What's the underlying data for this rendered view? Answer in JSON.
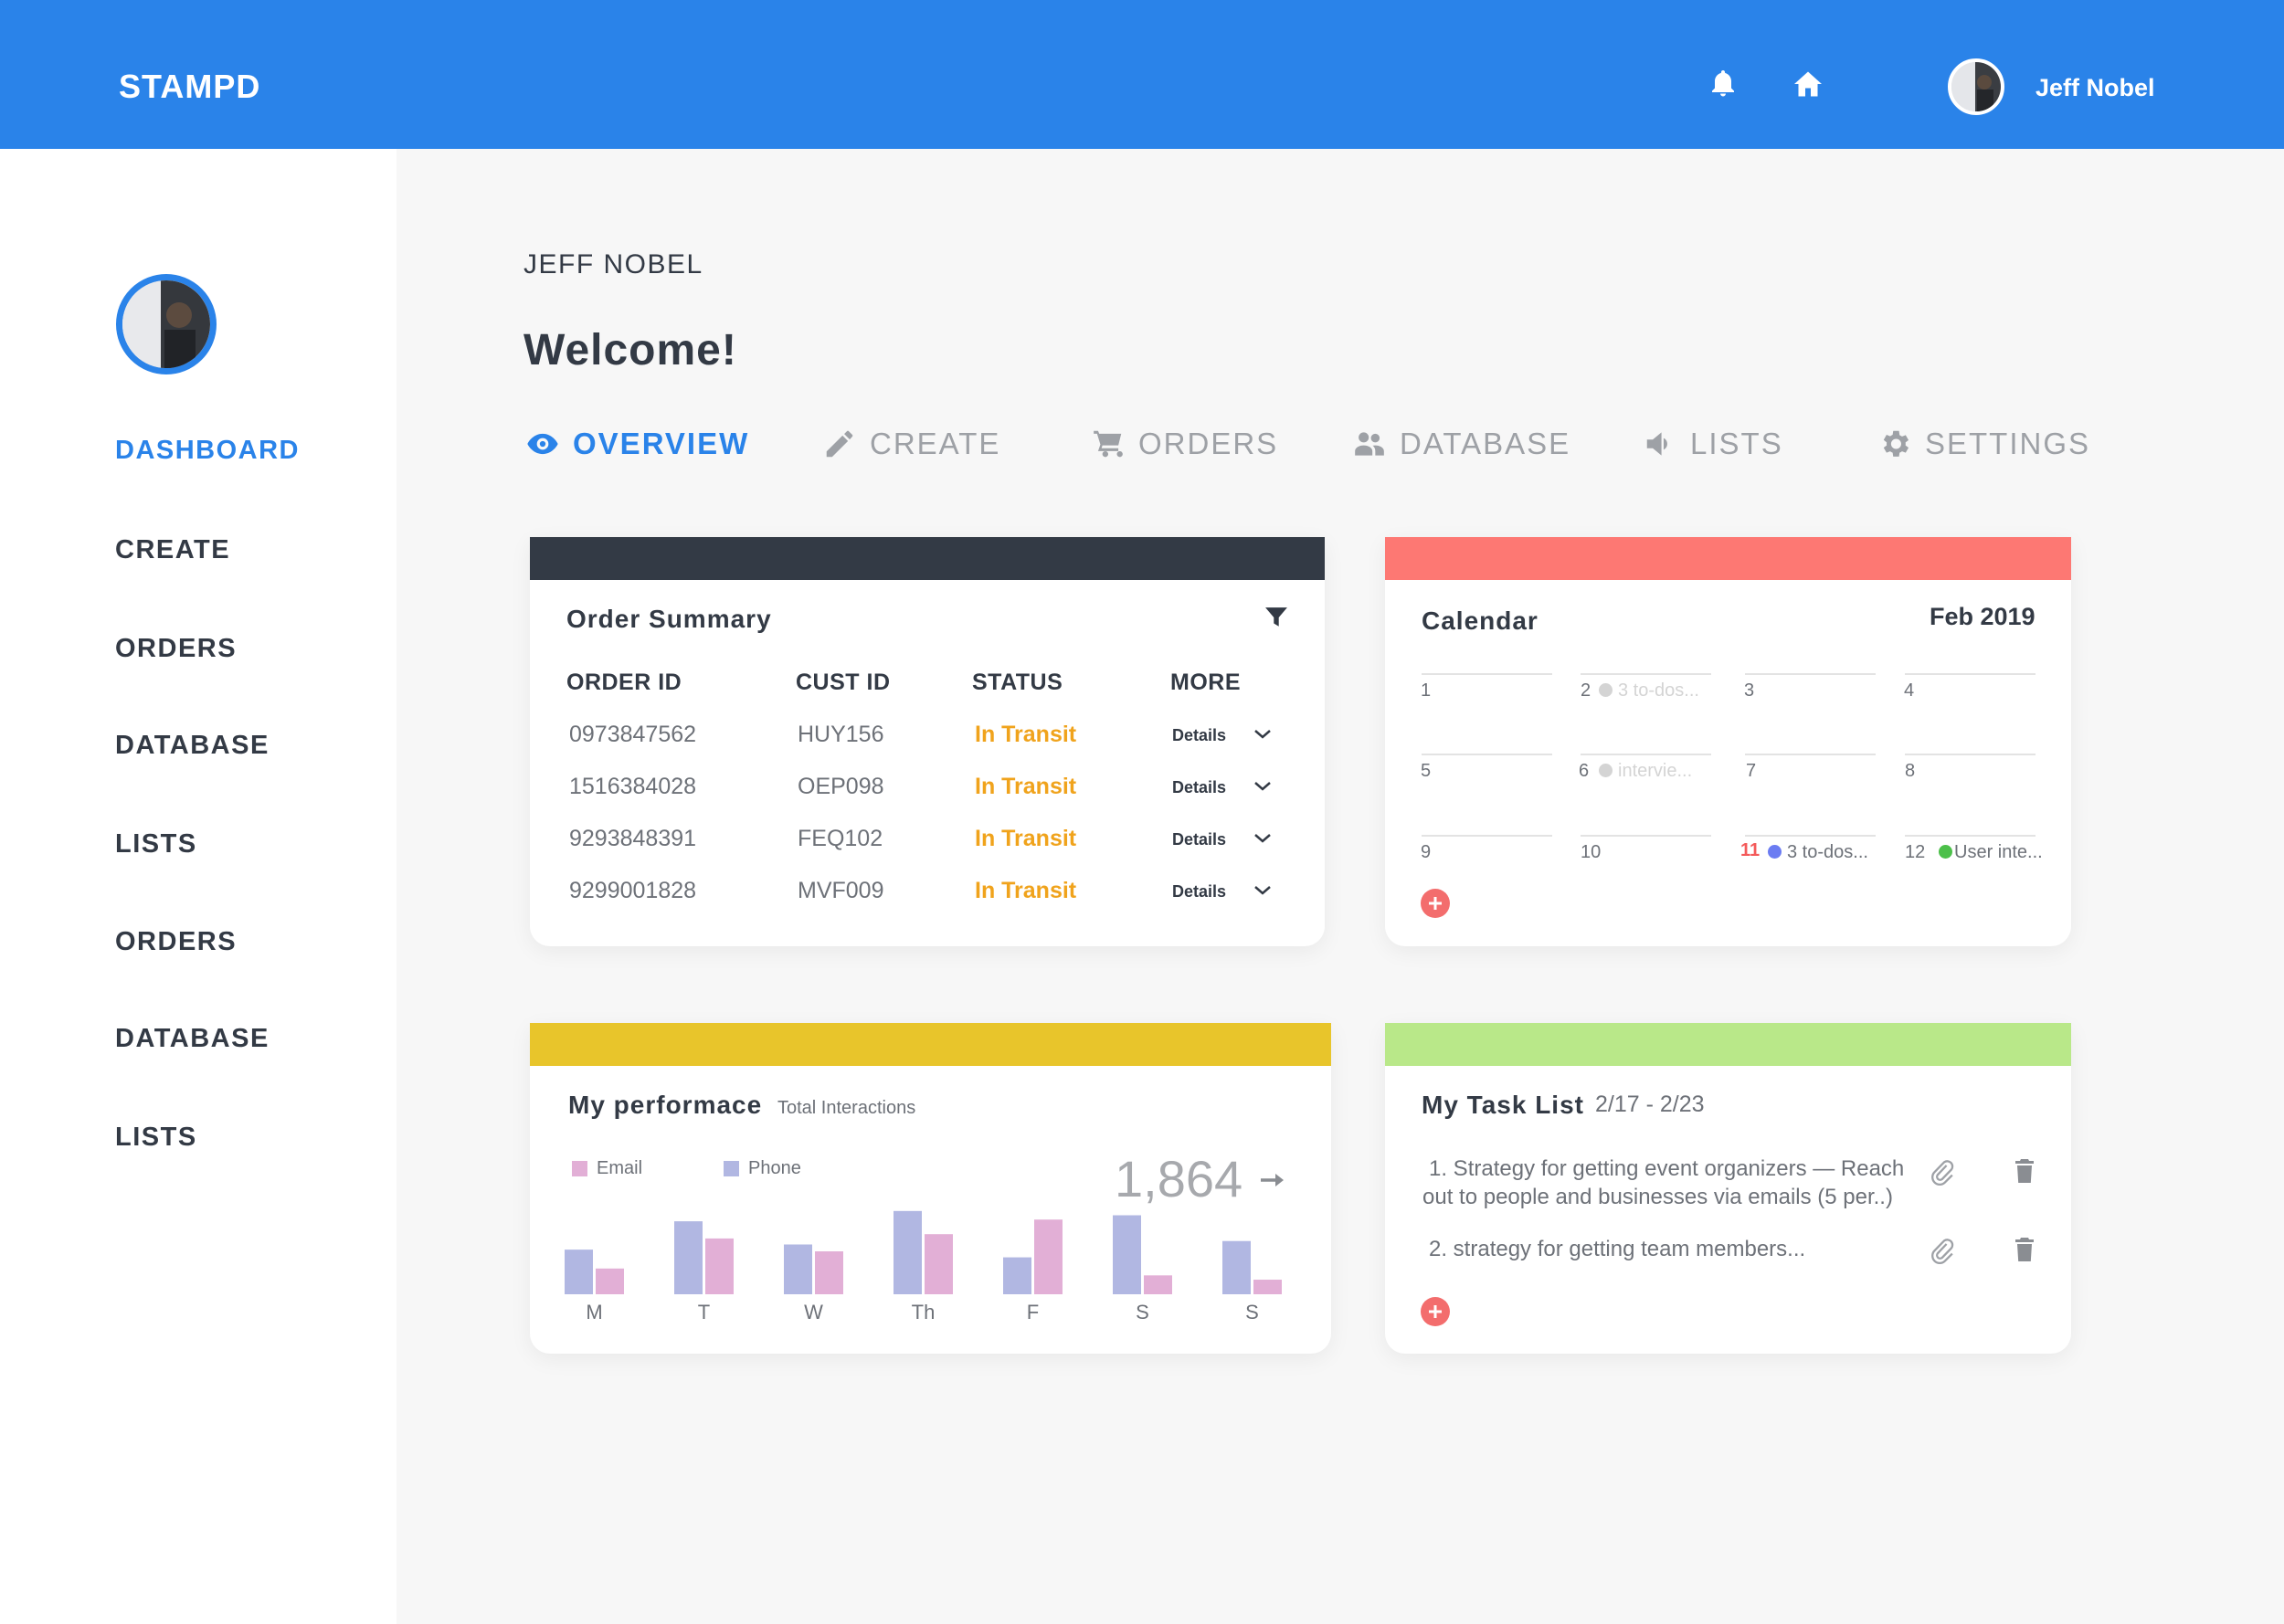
{
  "app": {
    "brand": "STAMPD"
  },
  "topbar": {
    "user_name": "Jeff Nobel",
    "icons": [
      "bell-icon",
      "home-icon"
    ]
  },
  "sidebar": {
    "items": [
      {
        "label": "DASHBOARD",
        "active": true
      },
      {
        "label": "CREATE"
      },
      {
        "label": "ORDERS"
      },
      {
        "label": "DATABASE"
      },
      {
        "label": "LISTS"
      },
      {
        "label": "ORDERS"
      },
      {
        "label": "DATABASE"
      },
      {
        "label": "LISTS"
      }
    ]
  },
  "header": {
    "user_heading": "JEFF NOBEL",
    "welcome": "Welcome!"
  },
  "tabs": [
    {
      "label": "OVERVIEW",
      "icon": "eye-icon",
      "active": true
    },
    {
      "label": "CREATE",
      "icon": "pencil-icon"
    },
    {
      "label": "ORDERS",
      "icon": "cart-icon"
    },
    {
      "label": "DATABASE",
      "icon": "users-icon"
    },
    {
      "label": "LISTS",
      "icon": "megaphone-icon"
    },
    {
      "label": "SETTINGS",
      "icon": "gear-icon"
    }
  ],
  "order_summary": {
    "title": "Order Summary",
    "columns": [
      "ORDER ID",
      "CUST ID",
      "STATUS",
      "MORE"
    ],
    "rows": [
      {
        "order_id": "0973847562",
        "cust_id": "HUY156",
        "status": "In Transit",
        "more": "Details"
      },
      {
        "order_id": "1516384028",
        "cust_id": "OEP098",
        "status": "In Transit",
        "more": "Details"
      },
      {
        "order_id": "9293848391",
        "cust_id": "FEQ102",
        "status": "In Transit",
        "more": "Details"
      },
      {
        "order_id": "9299001828",
        "cust_id": "MVF009",
        "status": "In Transit",
        "more": "Details"
      }
    ],
    "accent_color": "#333a45"
  },
  "calendar": {
    "title": "Calendar",
    "month": "Feb 2019",
    "accent_color": "#fd7873",
    "days": [
      {
        "day": "1"
      },
      {
        "day": "2",
        "event": "3 to-dos...",
        "dot": "#d4d4d4"
      },
      {
        "day": "3"
      },
      {
        "day": "4"
      },
      {
        "day": "5"
      },
      {
        "day": "6",
        "event": "intervie...",
        "dot": "#d4d4d4"
      },
      {
        "day": "7"
      },
      {
        "day": "8"
      },
      {
        "day": "9"
      },
      {
        "day": "10"
      },
      {
        "day": "11",
        "event": "3 to-dos...",
        "dot": "#6b7cf2",
        "today": true
      },
      {
        "day": "12",
        "event": "User inte...",
        "dot": "#4cc04a"
      }
    ]
  },
  "performance": {
    "title": "My performace",
    "subtitle": "Total Interactions",
    "total": "1,864",
    "accent_color": "#e8c52b",
    "legend": [
      {
        "name": "Email",
        "color": "#e2afd6"
      },
      {
        "name": "Phone",
        "color": "#b1b7e2"
      }
    ]
  },
  "chart_data": {
    "type": "bar",
    "categories": [
      "M",
      "T",
      "W",
      "Th",
      "F",
      "S",
      "S"
    ],
    "series": [
      {
        "name": "Phone",
        "values": [
          52,
          85,
          58,
          97,
          43,
          92,
          62
        ]
      },
      {
        "name": "Email",
        "values": [
          30,
          65,
          50,
          70,
          87,
          22,
          17
        ]
      }
    ],
    "ylim": [
      0,
      100
    ]
  },
  "task_list": {
    "title": "My Task List",
    "range": "2/17 - 2/23",
    "accent_color": "#b9e889",
    "tasks": [
      {
        "line1": "1. Strategy for getting event organizers — Reach",
        "line2": "out to people and businesses via emails (5 per..)"
      },
      {
        "line1": "2. strategy for getting team members..."
      }
    ]
  }
}
